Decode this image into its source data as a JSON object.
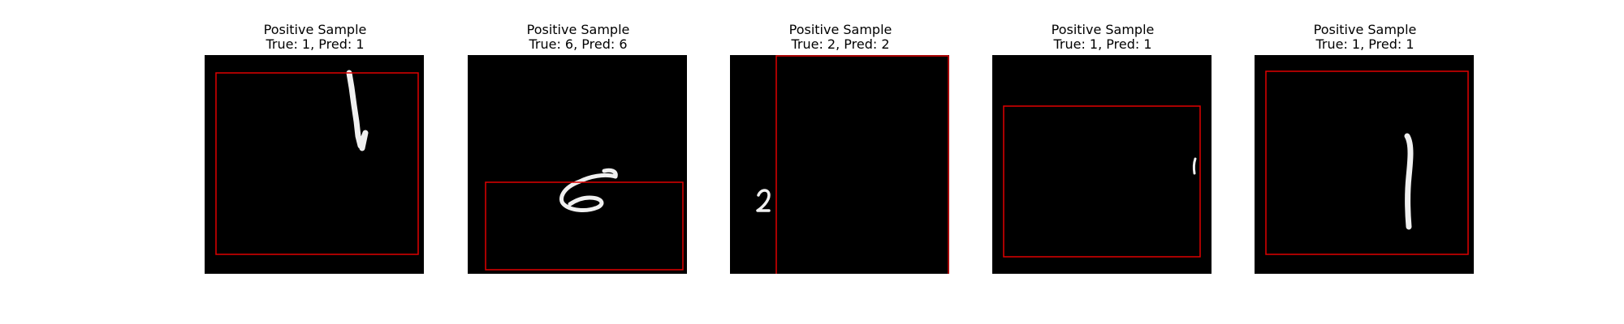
{
  "samples": [
    {
      "title": "Positive Sample",
      "subtitle": "True: 1, Pred: 1",
      "digit": "1",
      "stroke_color": "#e00000",
      "stroke_desc": "thin-red-box"
    },
    {
      "title": "Positive Sample",
      "subtitle": "True: 6, Pred: 6",
      "digit": "6",
      "stroke_color": "#e00000",
      "stroke_desc": "thin-red-box"
    },
    {
      "title": "Positive Sample",
      "subtitle": "True: 2, Pred: 2",
      "digit": "2",
      "stroke_color": "#e00000",
      "stroke_desc": "thin-red-box"
    },
    {
      "title": "Positive Sample",
      "subtitle": "True: 1, Pred: 1",
      "digit": "1",
      "stroke_color": "#e00000",
      "stroke_desc": "thin-red-box"
    },
    {
      "title": "Positive Sample",
      "subtitle": "True: 1, Pred: 1",
      "digit": "1",
      "stroke_color": "#e00000",
      "stroke_desc": "thin-red-box"
    }
  ]
}
